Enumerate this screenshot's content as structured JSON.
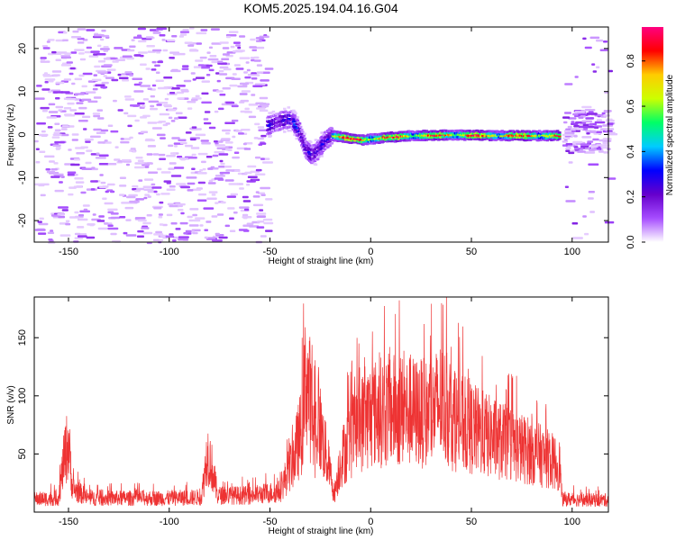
{
  "chart_data": [
    {
      "type": "heatmap",
      "title": "KOM5.2025.194.04.16.G04",
      "xlabel": "Height of straight line (km)",
      "ylabel": "Frequency (Hz)",
      "xlim": [
        -167,
        118
      ],
      "ylim": [
        -25,
        25
      ],
      "xticks": [
        -150,
        -100,
        -50,
        0,
        50,
        100
      ],
      "yticks": [
        -20,
        -10,
        0,
        10,
        20
      ],
      "colorbar": {
        "label": "Normalized spectral amplitude",
        "range": [
          0,
          0.95
        ],
        "ticks": [
          0.0,
          0.2,
          0.4,
          0.6,
          0.8
        ],
        "colors": [
          "#ffffff",
          "#a64dff",
          "#6600cc",
          "#0000ff",
          "#00ccff",
          "#00ff66",
          "#ccff00",
          "#ffcc00",
          "#ff0000",
          "#ff0080"
        ]
      },
      "trace": {
        "x": [
          -52,
          -45,
          -40,
          -36,
          -33,
          -30,
          -27,
          -24,
          -20,
          -15,
          -5,
          5,
          20,
          40,
          60,
          80,
          93
        ],
        "y": [
          2.3,
          3.5,
          3.8,
          1,
          -3,
          -4.5,
          -3.5,
          -1.5,
          0,
          -0.3,
          -1,
          -0.5,
          0,
          0.2,
          0,
          0,
          0
        ]
      },
      "noise_region": [
        -167,
        -52
      ],
      "noise_region_right": [
        95,
        118
      ]
    },
    {
      "type": "line",
      "xlabel": "Height of straight line (km)",
      "ylabel": "SNR (v/v)",
      "xlim": [
        -167,
        118
      ],
      "ylim": [
        0,
        185
      ],
      "xticks": [
        -150,
        -100,
        -50,
        0,
        50,
        100
      ],
      "yticks": [
        50,
        100,
        150
      ],
      "color": "#ee3333",
      "envelope": {
        "x": [
          -167,
          -155,
          -152,
          -150,
          -148,
          -140,
          -100,
          -84,
          -81,
          -79,
          -76,
          -60,
          -45,
          -38,
          -34,
          -32,
          -30,
          -28,
          -26,
          -22,
          -18,
          -15,
          -10,
          -5,
          0,
          10,
          20,
          30,
          35,
          40,
          50,
          60,
          70,
          80,
          90,
          94,
          95,
          110,
          118
        ],
        "y": [
          14,
          15,
          60,
          75,
          25,
          15,
          15,
          16,
          65,
          50,
          18,
          18,
          22,
          60,
          90,
          150,
          120,
          80,
          100,
          60,
          20,
          55,
          80,
          95,
          105,
          110,
          108,
          105,
          120,
          100,
          90,
          80,
          72,
          65,
          55,
          50,
          14,
          13,
          13
        ]
      }
    }
  ]
}
